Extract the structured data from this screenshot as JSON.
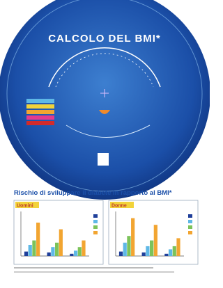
{
  "header": {
    "title": "CALCOLO DEL BMI*"
  },
  "subtitle": "Rischio di sviluppare il diabete in rapporto al BMI*",
  "chart_data": [
    {
      "type": "bar",
      "title": "Uomini",
      "ylim": [
        0,
        100
      ],
      "series": [
        {
          "color": "#1f3f9a",
          "values": [
            10,
            8,
            5
          ]
        },
        {
          "color": "#5fb8e6",
          "values": [
            25,
            20,
            12
          ]
        },
        {
          "color": "#7cc35a",
          "values": [
            35,
            30,
            20
          ]
        },
        {
          "color": "#f2a531",
          "values": [
            75,
            60,
            35
          ]
        }
      ]
    },
    {
      "type": "bar",
      "title": "Donne",
      "ylim": [
        0,
        100
      ],
      "series": [
        {
          "color": "#1f3f9a",
          "values": [
            10,
            8,
            5
          ]
        },
        {
          "color": "#5fb8e6",
          "values": [
            30,
            22,
            15
          ]
        },
        {
          "color": "#7cc35a",
          "values": [
            45,
            35,
            22
          ]
        },
        {
          "color": "#f2a531",
          "values": [
            85,
            70,
            40
          ]
        }
      ]
    }
  ]
}
